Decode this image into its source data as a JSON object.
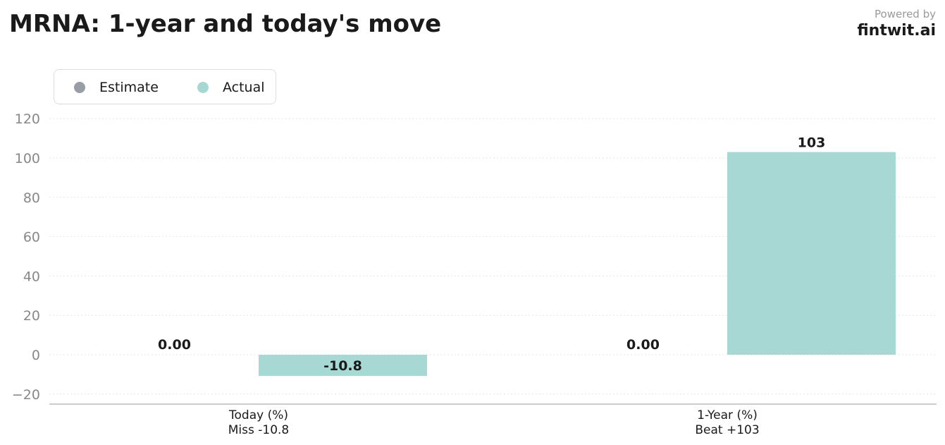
{
  "header": {
    "title": "MRNA: 1-year and today's move",
    "powered_by": "Powered by",
    "brand": "fintwit.ai"
  },
  "colors": {
    "estimate": "#999ea5",
    "actual": "#a8d8d4",
    "grid": "#e6e6e6",
    "axis": "#bbbbbb"
  },
  "chart_data": {
    "type": "bar",
    "categories": [
      "Today (%)",
      "1-Year (%)"
    ],
    "category_sublabels": [
      "Miss -10.8",
      "Beat +103"
    ],
    "series": [
      {
        "name": "Estimate",
        "values": [
          0.0,
          0.0
        ],
        "labels": [
          "0.00",
          "0.00"
        ]
      },
      {
        "name": "Actual",
        "values": [
          -10.8,
          103
        ],
        "labels": [
          "-10.8",
          "103"
        ]
      }
    ],
    "yticks": [
      -20,
      0,
      20,
      40,
      60,
      80,
      100,
      120
    ],
    "ytick_labels": [
      "−20",
      "0",
      "20",
      "40",
      "60",
      "80",
      "100",
      "120"
    ],
    "ylim": [
      -25,
      125
    ],
    "grid": true,
    "legend": "top-left"
  }
}
